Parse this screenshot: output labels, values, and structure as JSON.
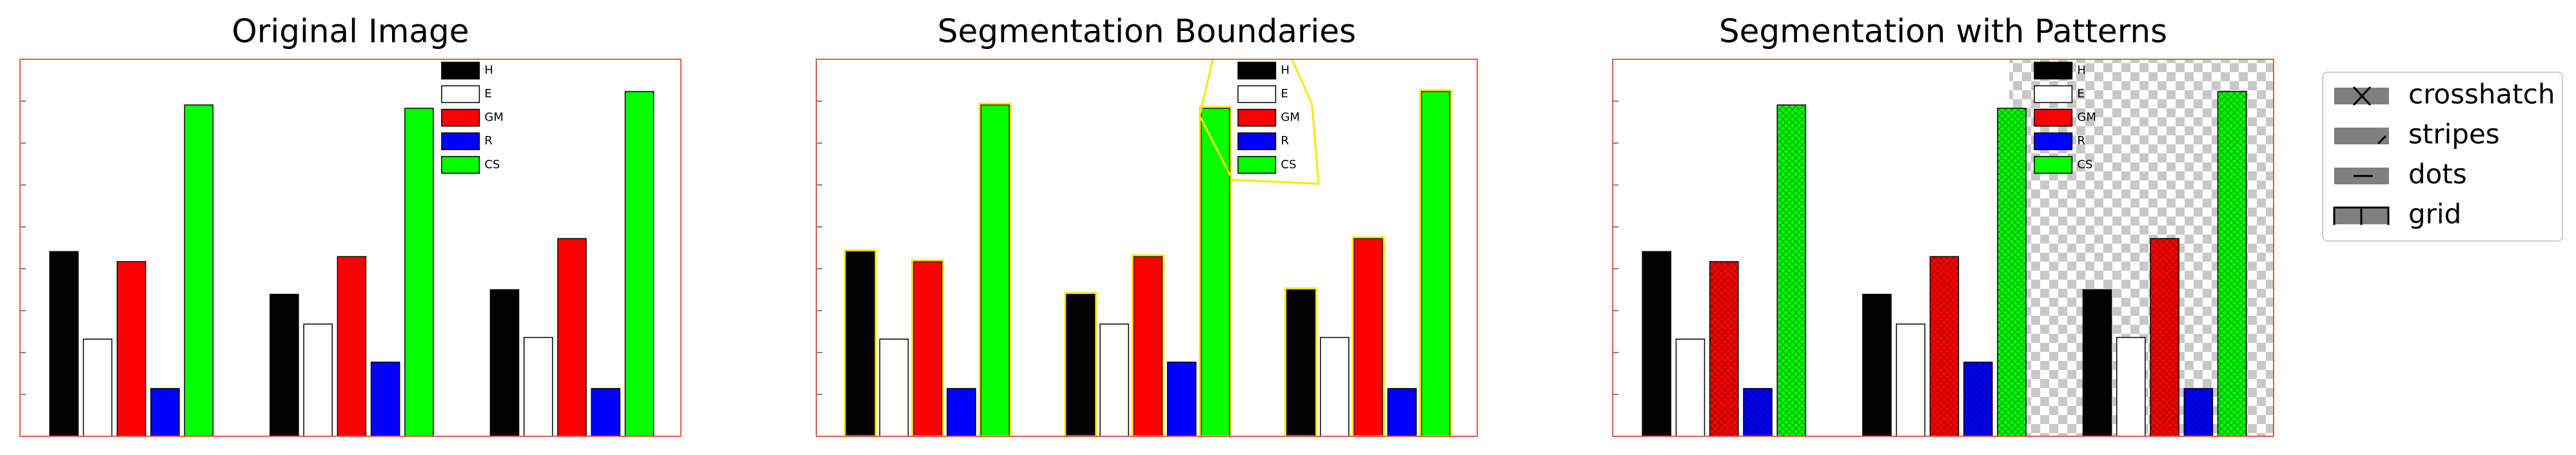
{
  "chart_data": [
    {
      "type": "bar",
      "title": "Original Image",
      "overlay": "none",
      "ylim": [
        0,
        9
      ],
      "yticks": [
        1,
        2,
        3,
        4,
        5,
        6,
        7,
        8
      ],
      "series": [
        {
          "name": "H",
          "color": "#000000",
          "values": [
            4.41,
            3.39,
            3.5
          ]
        },
        {
          "name": "E",
          "color": "#ffffff",
          "values": [
            2.32,
            2.68,
            2.36
          ]
        },
        {
          "name": "GM",
          "color": "#ff0000",
          "values": [
            4.17,
            4.29,
            4.72
          ]
        },
        {
          "name": "R",
          "color": "#0000ff",
          "values": [
            1.14,
            1.77,
            1.14
          ]
        },
        {
          "name": "CS",
          "color": "#00ff00",
          "values": [
            7.91,
            7.83,
            8.23
          ]
        }
      ]
    },
    {
      "type": "bar",
      "title": "Segmentation Boundaries",
      "overlay": "boundaries",
      "ylim": [
        0,
        9
      ],
      "yticks": [
        1,
        2,
        3,
        4,
        5,
        6,
        7,
        8
      ],
      "series": [
        {
          "name": "H",
          "color": "#000000",
          "values": [
            4.41,
            3.39,
            3.5
          ]
        },
        {
          "name": "E",
          "color": "#ffffff",
          "values": [
            2.32,
            2.68,
            2.36
          ]
        },
        {
          "name": "GM",
          "color": "#ff0000",
          "values": [
            4.17,
            4.29,
            4.72
          ]
        },
        {
          "name": "R",
          "color": "#0000ff",
          "values": [
            1.14,
            1.77,
            1.14
          ]
        },
        {
          "name": "CS",
          "color": "#00ff00",
          "values": [
            7.91,
            7.83,
            8.23
          ]
        }
      ]
    },
    {
      "type": "bar",
      "title": "Segmentation with Patterns",
      "overlay": "patterns",
      "ylim": [
        0,
        9
      ],
      "yticks": [
        1,
        2,
        3,
        4,
        5,
        6,
        7,
        8
      ],
      "series": [
        {
          "name": "H",
          "color": "#000000",
          "values": [
            4.41,
            3.39,
            3.5
          ]
        },
        {
          "name": "E",
          "color": "#ffffff",
          "values": [
            2.32,
            2.68,
            2.36
          ]
        },
        {
          "name": "GM",
          "color": "#ff0000",
          "values": [
            4.17,
            4.29,
            4.72
          ]
        },
        {
          "name": "R",
          "color": "#0000ff",
          "values": [
            1.14,
            1.77,
            1.14
          ]
        },
        {
          "name": "CS",
          "color": "#00ff00",
          "values": [
            7.91,
            7.83,
            8.23
          ]
        }
      ],
      "pattern_legend": [
        "crosshatch",
        "stripes",
        "dots",
        "grid"
      ]
    }
  ]
}
